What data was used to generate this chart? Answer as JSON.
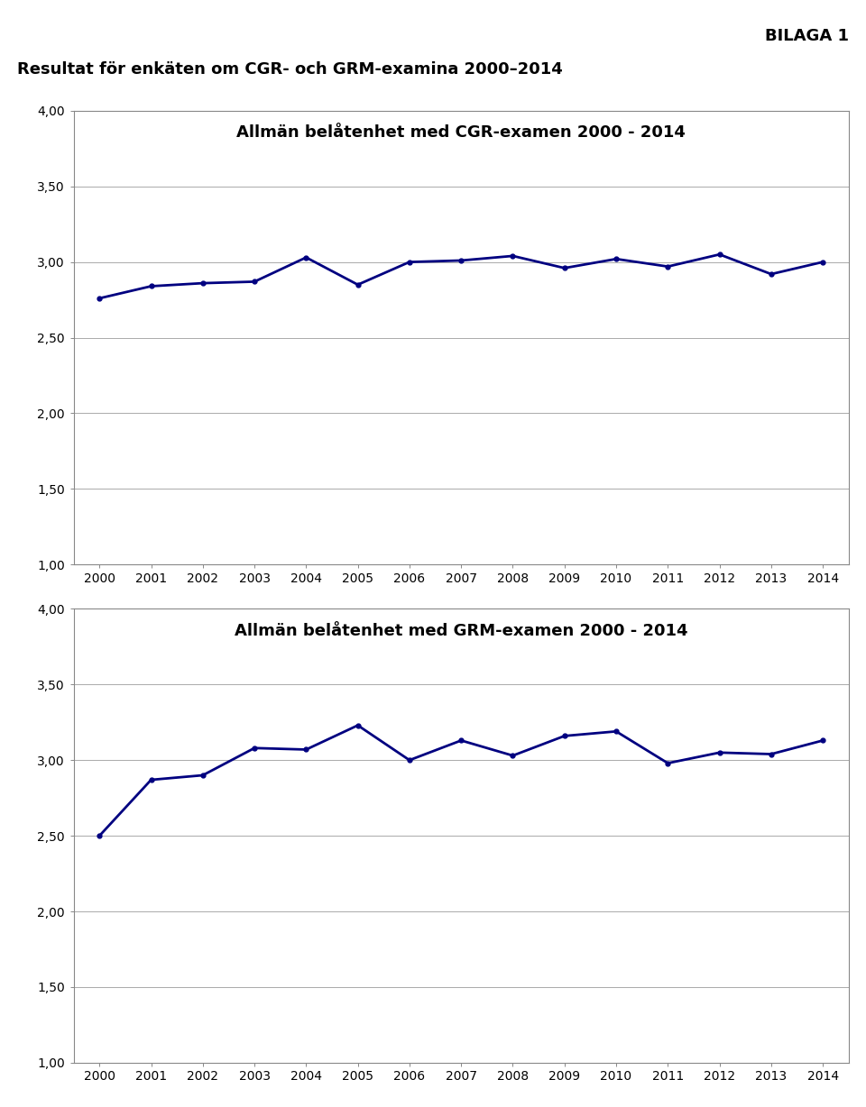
{
  "page_title": "Resultat för enkäten om CGR- och GRM-examina 2000–2014",
  "bilaga": "BILAGA 1",
  "years": [
    2000,
    2001,
    2002,
    2003,
    2004,
    2005,
    2006,
    2007,
    2008,
    2009,
    2010,
    2011,
    2012,
    2013,
    2014
  ],
  "cgr_title": "Allmän belåtenhet med CGR-examen 2000 - 2014",
  "cgr_values": [
    2.76,
    2.84,
    2.86,
    2.87,
    3.03,
    2.85,
    3.0,
    3.01,
    3.04,
    2.96,
    3.02,
    2.97,
    3.05,
    2.92,
    3.0
  ],
  "grm_title": "Allmän belåtenhet med GRM-examen 2000 - 2014",
  "grm_values": [
    2.5,
    2.87,
    2.9,
    3.08,
    3.07,
    3.23,
    3.0,
    3.13,
    3.03,
    3.16,
    3.19,
    2.98,
    3.05,
    3.04,
    3.13
  ],
  "line_color": "#000080",
  "line_width": 2.0,
  "ylim": [
    1.0,
    4.0
  ],
  "yticks": [
    1.0,
    1.5,
    2.0,
    2.5,
    3.0,
    3.5,
    4.0
  ],
  "grid_color": "#aaaaaa",
  "spine_color": "#888888",
  "chart_bg": "#ffffff",
  "page_bg": "#ffffff",
  "title_fontsize": 13,
  "chart_title_fontsize": 13,
  "tick_fontsize": 10,
  "bilaga_fontsize": 13,
  "page_title_fontsize": 13
}
